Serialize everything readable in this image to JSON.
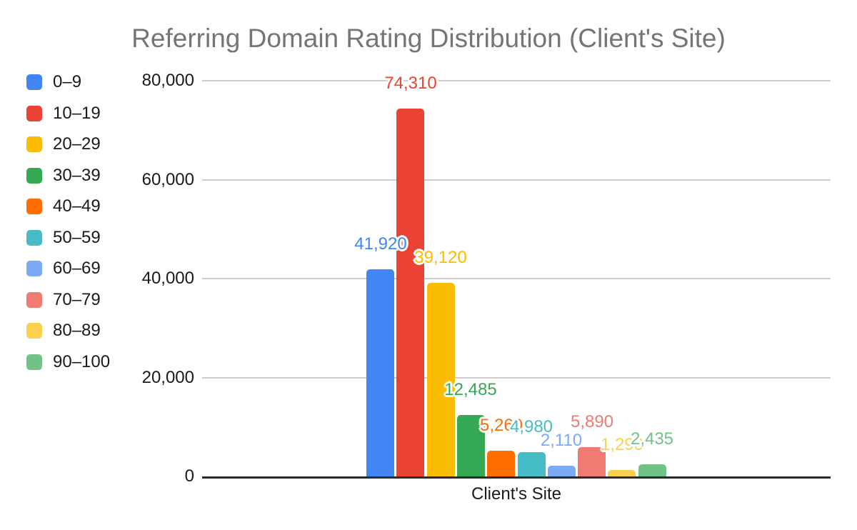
{
  "chart_data": {
    "type": "bar",
    "title": "Referring Domain Rating Distribution (Client's Site)",
    "title_color": "#757575",
    "xlabel": "Client's Site",
    "categories": [
      "Client's Site"
    ],
    "legend_position": "left",
    "grid": true,
    "ylim": [
      0,
      80000
    ],
    "yticks": [
      {
        "value": 0,
        "label": "0"
      },
      {
        "value": 20000,
        "label": "20,000"
      },
      {
        "value": 40000,
        "label": "40,000"
      },
      {
        "value": 60000,
        "label": "60,000"
      },
      {
        "value": 80000,
        "label": "80,000"
      }
    ],
    "series": [
      {
        "name": "0–9",
        "value": 41920,
        "label": "41,920",
        "color": "#4285F4"
      },
      {
        "name": "10–19",
        "value": 74310,
        "label": "74,310",
        "color": "#EA4335"
      },
      {
        "name": "20–29",
        "value": 39120,
        "label": "39,120",
        "color": "#FBBC04"
      },
      {
        "name": "30–39",
        "value": 12485,
        "label": "12,485",
        "color": "#34A853"
      },
      {
        "name": "40–49",
        "value": 5260,
        "label": "5,260",
        "color": "#FF6D01"
      },
      {
        "name": "50–59",
        "value": 4980,
        "label": "4,980",
        "color": "#46BDC6"
      },
      {
        "name": "60–69",
        "value": 2110,
        "label": "2,110",
        "color": "#7BAAF7"
      },
      {
        "name": "70–79",
        "value": 5890,
        "label": "5,890",
        "color": "#F07B72"
      },
      {
        "name": "80–89",
        "value": 1290,
        "label": "1,290",
        "color": "#FCD04F"
      },
      {
        "name": "90–100",
        "value": 2435,
        "label": "2,435",
        "color": "#71C287"
      }
    ],
    "gridline_color": "#cccccc",
    "axis_line_color": "#2b2b2b"
  }
}
